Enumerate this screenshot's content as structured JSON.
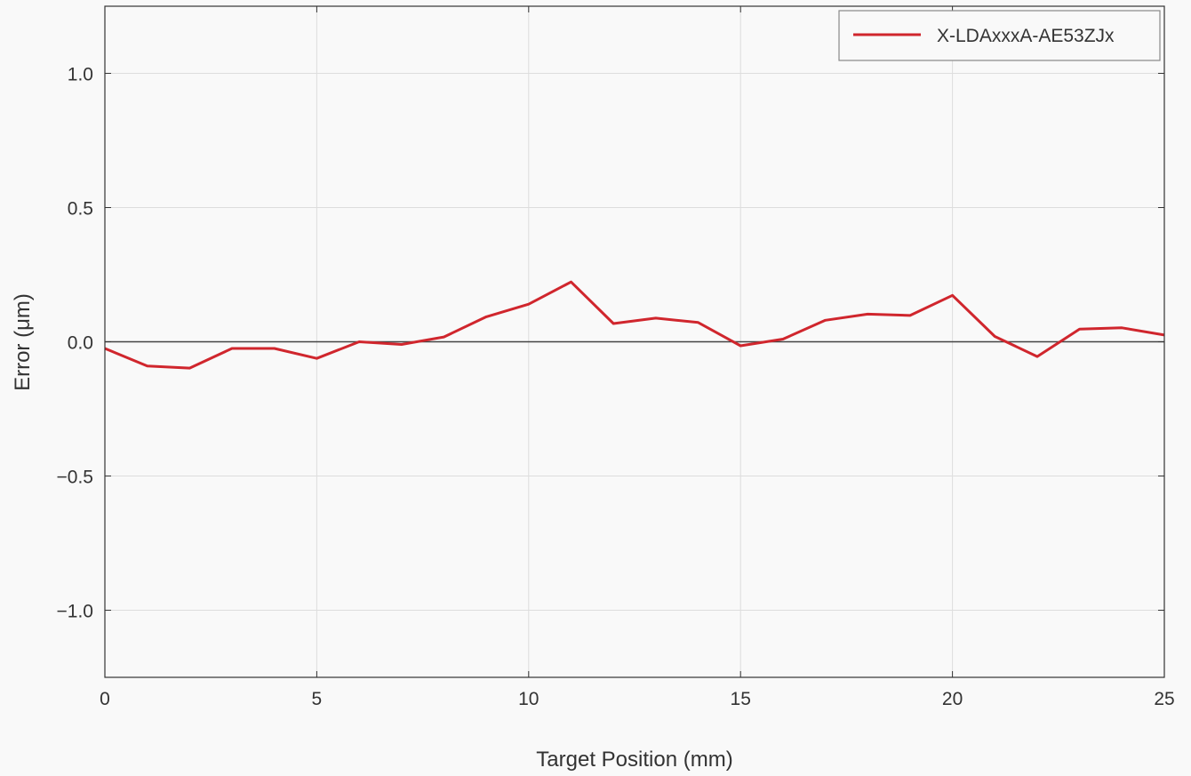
{
  "chart_data": {
    "type": "line",
    "xlabel": "Target Position (mm)",
    "ylabel": "Error (μm)",
    "xlim": [
      0,
      25
    ],
    "ylim": [
      -1.25,
      1.25
    ],
    "xticks": [
      0,
      5,
      10,
      15,
      20,
      25
    ],
    "xtick_labels": [
      "0",
      "5",
      "10",
      "15",
      "20",
      "25"
    ],
    "yticks": [
      -1.0,
      -0.5,
      0.0,
      0.5,
      1.0
    ],
    "ytick_labels": [
      "−1.0",
      "−0.5",
      "0.0",
      "0.5",
      "1.0"
    ],
    "grid": true,
    "zero_line": true,
    "legend_position": "top-right",
    "series": [
      {
        "name": "X-LDAxxxA-AE53ZJx",
        "color": "#d0262d",
        "x": [
          0,
          1,
          2,
          3,
          4,
          5,
          6,
          7,
          8,
          9,
          10,
          11,
          12,
          13,
          14,
          15,
          16,
          17,
          18,
          19,
          20,
          21,
          22,
          23,
          24,
          25
        ],
        "y": [
          -0.025,
          -0.09,
          -0.098,
          -0.025,
          -0.025,
          -0.062,
          0.0,
          -0.01,
          0.018,
          0.093,
          0.14,
          0.223,
          0.068,
          0.088,
          0.072,
          -0.015,
          0.01,
          0.08,
          0.103,
          0.098,
          0.173,
          0.02,
          -0.055,
          0.047,
          0.052,
          0.025
        ]
      }
    ]
  }
}
